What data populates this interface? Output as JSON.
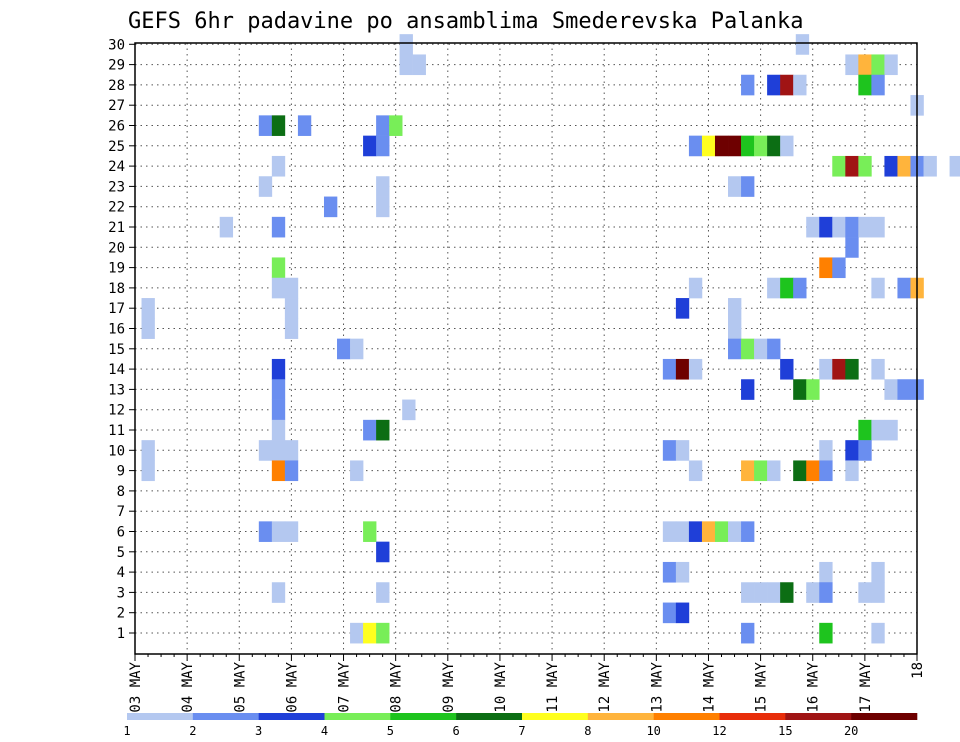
{
  "chart_data": {
    "type": "heatmap",
    "title": "GEFS 6hr padavine po ansamblima Smederevska Palanka",
    "x_ticks": [
      "03 MAY",
      "04 MAY",
      "05 MAY",
      "06 MAY",
      "07 MAY",
      "08 MAY",
      "09 MAY",
      "10 MAY",
      "11 MAY",
      "12 MAY",
      "13 MAY",
      "14 MAY",
      "15 MAY",
      "16 MAY",
      "17 MAY",
      "18"
    ],
    "y_ticks": [
      "1",
      "2",
      "3",
      "4",
      "5",
      "6",
      "7",
      "8",
      "9",
      "10",
      "11",
      "12",
      "13",
      "14",
      "15",
      "16",
      "17",
      "18",
      "19",
      "20",
      "21",
      "22",
      "23",
      "24",
      "25",
      "26",
      "27",
      "28",
      "29",
      "30"
    ],
    "ylim": [
      1,
      30
    ],
    "grid": true,
    "legend_position": "bottom",
    "colorbar": {
      "labels": [
        "1",
        "2",
        "3",
        "4",
        "5",
        "6",
        "7",
        "8",
        "10",
        "12",
        "15",
        "20"
      ],
      "colors": [
        "#b4c8f0",
        "#6a8ef0",
        "#1f3fd8",
        "#78ee58",
        "#1ec41e",
        "#0c6e14",
        "#ffff1e",
        "#ffb43c",
        "#ff8000",
        "#e82d0a",
        "#a01414",
        "#6e0000"
      ]
    },
    "cells": [
      {
        "member": 30,
        "time": 5.2,
        "level": 1
      },
      {
        "member": 30,
        "time": 12.8,
        "level": 1
      },
      {
        "member": 29,
        "time": 5.2,
        "level": 1
      },
      {
        "member": 29,
        "time": 5.45,
        "level": 1
      },
      {
        "member": 29,
        "time": 13.75,
        "level": 1
      },
      {
        "member": 29,
        "time": 14,
        "level": 8
      },
      {
        "member": 29,
        "time": 14.25,
        "level": 4
      },
      {
        "member": 29,
        "time": 14.5,
        "level": 1
      },
      {
        "member": 28,
        "time": 11.75,
        "level": 2
      },
      {
        "member": 28,
        "time": 12.25,
        "level": 3
      },
      {
        "member": 28,
        "time": 12.5,
        "level": 11
      },
      {
        "member": 28,
        "time": 12.75,
        "level": 1
      },
      {
        "member": 28,
        "time": 14,
        "level": 5
      },
      {
        "member": 28,
        "time": 14.25,
        "level": 2
      },
      {
        "member": 27,
        "time": 15,
        "level": 1
      },
      {
        "member": 26,
        "time": 2.5,
        "level": 2
      },
      {
        "member": 26,
        "time": 2.75,
        "level": 6
      },
      {
        "member": 26,
        "time": 3.25,
        "level": 2
      },
      {
        "member": 26,
        "time": 4.75,
        "level": 2
      },
      {
        "member": 26,
        "time": 5,
        "level": 4
      },
      {
        "member": 25,
        "time": 4.5,
        "level": 3
      },
      {
        "member": 25,
        "time": 4.75,
        "level": 2
      },
      {
        "member": 25,
        "time": 10.75,
        "level": 2
      },
      {
        "member": 25,
        "time": 11,
        "level": 7
      },
      {
        "member": 25,
        "time": 11.25,
        "level": 12
      },
      {
        "member": 25,
        "time": 11.5,
        "level": 12
      },
      {
        "member": 25,
        "time": 11.75,
        "level": 5
      },
      {
        "member": 25,
        "time": 12,
        "level": 4
      },
      {
        "member": 25,
        "time": 12.25,
        "level": 6
      },
      {
        "member": 25,
        "time": 12.5,
        "level": 1
      },
      {
        "member": 24,
        "time": 2.75,
        "level": 1
      },
      {
        "member": 24,
        "time": 13.5,
        "level": 4
      },
      {
        "member": 24,
        "time": 13.75,
        "level": 11
      },
      {
        "member": 24,
        "time": 14,
        "level": 4
      },
      {
        "member": 24,
        "time": 14.5,
        "level": 3
      },
      {
        "member": 24,
        "time": 14.75,
        "level": 8
      },
      {
        "member": 24,
        "time": 15,
        "level": 2
      },
      {
        "member": 24,
        "time": 15.25,
        "level": 1
      },
      {
        "member": 24,
        "time": 15.75,
        "level": 1
      },
      {
        "member": 23,
        "time": 2.5,
        "level": 1
      },
      {
        "member": 23,
        "time": 4.75,
        "level": 1
      },
      {
        "member": 23,
        "time": 11.5,
        "level": 1
      },
      {
        "member": 23,
        "time": 11.75,
        "level": 2
      },
      {
        "member": 22,
        "time": 3.75,
        "level": 2
      },
      {
        "member": 22,
        "time": 4.75,
        "level": 1
      },
      {
        "member": 21,
        "time": 1.75,
        "level": 1
      },
      {
        "member": 21,
        "time": 2.75,
        "level": 2
      },
      {
        "member": 21,
        "time": 13,
        "level": 1
      },
      {
        "member": 21,
        "time": 13.25,
        "level": 3
      },
      {
        "member": 21,
        "time": 13.5,
        "level": 1
      },
      {
        "member": 21,
        "time": 13.75,
        "level": 2
      },
      {
        "member": 21,
        "time": 14,
        "level": 1
      },
      {
        "member": 21,
        "time": 14.25,
        "level": 1
      },
      {
        "member": 20,
        "time": 13.75,
        "level": 2
      },
      {
        "member": 19,
        "time": 2.75,
        "level": 4
      },
      {
        "member": 19,
        "time": 13.25,
        "level": 9
      },
      {
        "member": 19,
        "time": 13.5,
        "level": 2
      },
      {
        "member": 18,
        "time": 2.75,
        "level": 1
      },
      {
        "member": 18,
        "time": 3,
        "level": 1
      },
      {
        "member": 18,
        "time": 10.75,
        "level": 1
      },
      {
        "member": 18,
        "time": 12.25,
        "level": 1
      },
      {
        "member": 18,
        "time": 12.5,
        "level": 5
      },
      {
        "member": 18,
        "time": 12.75,
        "level": 2
      },
      {
        "member": 18,
        "time": 14.25,
        "level": 1
      },
      {
        "member": 18,
        "time": 14.75,
        "level": 2
      },
      {
        "member": 18,
        "time": 15,
        "level": 8
      },
      {
        "member": 17,
        "time": 0.25,
        "level": 1
      },
      {
        "member": 17,
        "time": 3,
        "level": 1
      },
      {
        "member": 17,
        "time": 10.5,
        "level": 3
      },
      {
        "member": 17,
        "time": 11.5,
        "level": 1
      },
      {
        "member": 16,
        "time": 0.25,
        "level": 1
      },
      {
        "member": 16,
        "time": 3,
        "level": 1
      },
      {
        "member": 16,
        "time": 11.5,
        "level": 1
      },
      {
        "member": 15,
        "time": 4,
        "level": 2
      },
      {
        "member": 15,
        "time": 4.25,
        "level": 1
      },
      {
        "member": 15,
        "time": 11.5,
        "level": 2
      },
      {
        "member": 15,
        "time": 11.75,
        "level": 4
      },
      {
        "member": 15,
        "time": 12,
        "level": 1
      },
      {
        "member": 15,
        "time": 12.25,
        "level": 2
      },
      {
        "member": 14,
        "time": 2.75,
        "level": 3
      },
      {
        "member": 14,
        "time": 10.25,
        "level": 2
      },
      {
        "member": 14,
        "time": 10.5,
        "level": 12
      },
      {
        "member": 14,
        "time": 10.75,
        "level": 1
      },
      {
        "member": 14,
        "time": 12.5,
        "level": 3
      },
      {
        "member": 14,
        "time": 13.25,
        "level": 1
      },
      {
        "member": 14,
        "time": 13.5,
        "level": 11
      },
      {
        "member": 14,
        "time": 13.75,
        "level": 6
      },
      {
        "member": 14,
        "time": 14.25,
        "level": 1
      },
      {
        "member": 13,
        "time": 2.75,
        "level": 2
      },
      {
        "member": 13,
        "time": 11.75,
        "level": 3
      },
      {
        "member": 13,
        "time": 12.75,
        "level": 6
      },
      {
        "member": 13,
        "time": 13,
        "level": 4
      },
      {
        "member": 13,
        "time": 14.5,
        "level": 1
      },
      {
        "member": 13,
        "time": 14.75,
        "level": 2
      },
      {
        "member": 13,
        "time": 15,
        "level": 2
      },
      {
        "member": 12,
        "time": 2.75,
        "level": 2
      },
      {
        "member": 12,
        "time": 5.25,
        "level": 1
      },
      {
        "member": 11,
        "time": 2.75,
        "level": 1
      },
      {
        "member": 11,
        "time": 4.5,
        "level": 2
      },
      {
        "member": 11,
        "time": 4.75,
        "level": 6
      },
      {
        "member": 11,
        "time": 14,
        "level": 5
      },
      {
        "member": 11,
        "time": 14.25,
        "level": 1
      },
      {
        "member": 11,
        "time": 14.5,
        "level": 1
      },
      {
        "member": 10,
        "time": 0.25,
        "level": 1
      },
      {
        "member": 10,
        "time": 2.5,
        "level": 1
      },
      {
        "member": 10,
        "time": 2.75,
        "level": 1
      },
      {
        "member": 10,
        "time": 3,
        "level": 1
      },
      {
        "member": 10,
        "time": 10.25,
        "level": 2
      },
      {
        "member": 10,
        "time": 10.5,
        "level": 1
      },
      {
        "member": 10,
        "time": 13.25,
        "level": 1
      },
      {
        "member": 10,
        "time": 13.75,
        "level": 3
      },
      {
        "member": 10,
        "time": 14,
        "level": 2
      },
      {
        "member": 9,
        "time": 0.25,
        "level": 1
      },
      {
        "member": 9,
        "time": 2.75,
        "level": 9
      },
      {
        "member": 9,
        "time": 3,
        "level": 2
      },
      {
        "member": 9,
        "time": 4.25,
        "level": 1
      },
      {
        "member": 9,
        "time": 10.75,
        "level": 1
      },
      {
        "member": 9,
        "time": 11.75,
        "level": 8
      },
      {
        "member": 9,
        "time": 12,
        "level": 4
      },
      {
        "member": 9,
        "time": 12.25,
        "level": 1
      },
      {
        "member": 9,
        "time": 12.75,
        "level": 6
      },
      {
        "member": 9,
        "time": 13,
        "level": 9
      },
      {
        "member": 9,
        "time": 13.25,
        "level": 2
      },
      {
        "member": 9,
        "time": 13.75,
        "level": 1
      },
      {
        "member": 6,
        "time": 2.5,
        "level": 2
      },
      {
        "member": 6,
        "time": 2.75,
        "level": 1
      },
      {
        "member": 6,
        "time": 3,
        "level": 1
      },
      {
        "member": 6,
        "time": 4.5,
        "level": 4
      },
      {
        "member": 6,
        "time": 10.25,
        "level": 1
      },
      {
        "member": 6,
        "time": 10.5,
        "level": 1
      },
      {
        "member": 6,
        "time": 10.75,
        "level": 3
      },
      {
        "member": 6,
        "time": 11,
        "level": 8
      },
      {
        "member": 6,
        "time": 11.25,
        "level": 4
      },
      {
        "member": 6,
        "time": 11.5,
        "level": 1
      },
      {
        "member": 6,
        "time": 11.75,
        "level": 2
      },
      {
        "member": 5,
        "time": 4.75,
        "level": 3
      },
      {
        "member": 4,
        "time": 10.25,
        "level": 2
      },
      {
        "member": 4,
        "time": 10.5,
        "level": 1
      },
      {
        "member": 4,
        "time": 13.25,
        "level": 1
      },
      {
        "member": 4,
        "time": 14.25,
        "level": 1
      },
      {
        "member": 3,
        "time": 2.75,
        "level": 1
      },
      {
        "member": 3,
        "time": 4.75,
        "level": 1
      },
      {
        "member": 3,
        "time": 11.75,
        "level": 1
      },
      {
        "member": 3,
        "time": 12,
        "level": 1
      },
      {
        "member": 3,
        "time": 12.25,
        "level": 1
      },
      {
        "member": 3,
        "time": 12.5,
        "level": 6
      },
      {
        "member": 3,
        "time": 13,
        "level": 1
      },
      {
        "member": 3,
        "time": 13.25,
        "level": 2
      },
      {
        "member": 3,
        "time": 14,
        "level": 1
      },
      {
        "member": 3,
        "time": 14.25,
        "level": 1
      },
      {
        "member": 2,
        "time": 10.25,
        "level": 2
      },
      {
        "member": 2,
        "time": 10.5,
        "level": 3
      },
      {
        "member": 1,
        "time": 4.25,
        "level": 1
      },
      {
        "member": 1,
        "time": 4.5,
        "level": 7
      },
      {
        "member": 1,
        "time": 4.75,
        "level": 4
      },
      {
        "member": 1,
        "time": 11.75,
        "level": 2
      },
      {
        "member": 1,
        "time": 13.25,
        "level": 5
      },
      {
        "member": 1,
        "time": 14.25,
        "level": 1
      }
    ]
  }
}
